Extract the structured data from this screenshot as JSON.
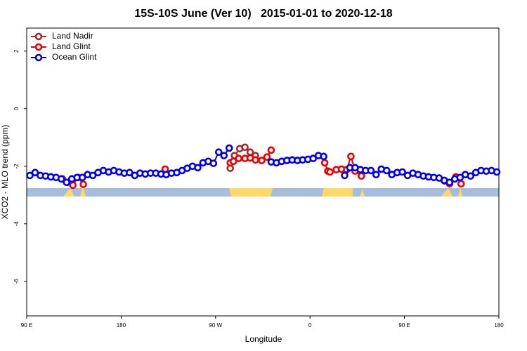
{
  "chart_data": {
    "type": "line",
    "title": "15S-10S June (Ver 10)   2015-01-01 to 2020-12-18",
    "x_label": "Longitude",
    "y_label": "XCO2 - MLO trend (ppm)",
    "xlim": [
      90,
      540
    ],
    "ylim": [
      -7.2,
      2.8
    ],
    "xticks": [
      {
        "value": 90,
        "label": "90 E"
      },
      180,
      {
        "value": 270,
        "label": "90 W"
      },
      {
        "value": 360,
        "label": "0"
      },
      {
        "value": 450,
        "label": "90 E"
      },
      {
        "value": 540,
        "label": "180"
      }
    ],
    "yticks": [
      2,
      0,
      -2,
      -4,
      -6
    ],
    "legend": "top-left",
    "series": [
      {
        "name": "Land Nadir",
        "color": "#a52a2a",
        "x": [
          284,
          288,
          293,
          298,
          303,
          308
        ],
        "values": [
          -2.07,
          -1.63,
          -1.39,
          -1.34,
          -1.51,
          -1.63
        ]
      },
      {
        "name": "Land Glint",
        "color": "#ee0000",
        "x": [
          124,
          129,
          134,
          139,
          144,
          180,
          222,
          260,
          284,
          287,
          292,
          298,
          303,
          308,
          314,
          319,
          323,
          350,
          374,
          377,
          379,
          385,
          390,
          395,
          399,
          403,
          409,
          450,
          488,
          493,
          499,
          504
        ],
        "values": [
          -2.44,
          -2.56,
          -2.66,
          -2.39,
          -2.63,
          null,
          -2.1,
          null,
          -1.88,
          -1.83,
          -1.73,
          -1.73,
          -1.71,
          -1.78,
          -1.8,
          -1.68,
          -1.44,
          null,
          -1.88,
          -2.17,
          -2.2,
          -2.12,
          -2.1,
          -2.12,
          -1.66,
          -2.17,
          -2.34,
          null,
          -2.51,
          -2.61,
          -2.37,
          -2.61
        ]
      },
      {
        "name": "Ocean Glint",
        "color": "#0000ee",
        "x": [
          93,
          98,
          103,
          108,
          113,
          118,
          123,
          128,
          133,
          138,
          143,
          148,
          153,
          158,
          163,
          168,
          173,
          178,
          183,
          188,
          193,
          198,
          203,
          208,
          213,
          218,
          223,
          228,
          233,
          238,
          243,
          248,
          253,
          258,
          263,
          268,
          273,
          278,
          283,
          288,
          293,
          298,
          303,
          308,
          313,
          318,
          323,
          328,
          333,
          338,
          343,
          348,
          353,
          358,
          363,
          368,
          373,
          378,
          383,
          388,
          393,
          398,
          403,
          408,
          413,
          418,
          423,
          428,
          433,
          438,
          443,
          448,
          453,
          458,
          463,
          468,
          473,
          478,
          483,
          488,
          493,
          498,
          503,
          508,
          513,
          518,
          523,
          528,
          533,
          538
        ],
        "values": [
          -2.32,
          -2.22,
          -2.32,
          -2.34,
          -2.37,
          -2.39,
          -2.44,
          -2.56,
          -2.44,
          -2.39,
          -2.39,
          -2.29,
          -2.32,
          -2.22,
          -2.15,
          -2.2,
          -2.15,
          -2.2,
          -2.24,
          -2.22,
          -2.32,
          -2.24,
          -2.27,
          -2.24,
          -2.24,
          -2.27,
          -2.29,
          -2.24,
          -2.22,
          -2.15,
          -2.07,
          -2.0,
          -2.05,
          -1.88,
          -1.83,
          -1.9,
          -1.51,
          -1.63,
          -1.37,
          null,
          null,
          null,
          null,
          null,
          null,
          null,
          -1.85,
          -1.88,
          -1.83,
          -1.8,
          -1.78,
          -1.8,
          -1.78,
          -1.76,
          -1.73,
          -1.63,
          -1.66,
          null,
          null,
          null,
          -2.32,
          -2.05,
          -2.05,
          -2.12,
          -2.15,
          -2.15,
          -2.29,
          -2.1,
          -2.15,
          -2.29,
          -2.22,
          -2.2,
          -2.32,
          -2.24,
          -2.29,
          -2.34,
          -2.37,
          -2.39,
          -2.41,
          -2.49,
          -2.56,
          -2.44,
          -2.39,
          -2.29,
          -2.34,
          -2.22,
          -2.15,
          -2.17,
          -2.15,
          -2.2
        ]
      }
    ]
  }
}
